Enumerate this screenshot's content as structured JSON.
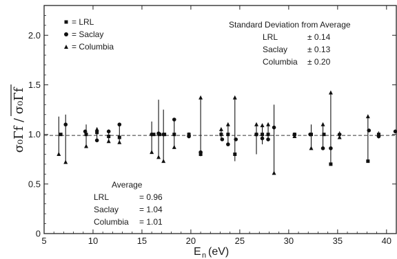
{
  "chart_data": {
    "type": "scatter",
    "xlabel": "E_n (eV)",
    "xlabel_main": "E",
    "xlabel_sub": "n",
    "xlabel_unit": "(eV)",
    "ylabel": "σ₀Γf / σ₀Γf",
    "xlim": [
      5,
      41
    ],
    "ylim": [
      0,
      2.3
    ],
    "x_ticks": [
      5,
      10,
      15,
      20,
      25,
      30,
      35,
      40
    ],
    "y_ticks": [
      0,
      0.5,
      1.0,
      1.5,
      2.0
    ],
    "x_tick_labels": [
      "5",
      "10",
      "15",
      "20",
      "25",
      "30",
      "35",
      "40"
    ],
    "y_tick_labels": [
      "0",
      "0.5",
      "1.0",
      "1.5",
      "2.0"
    ],
    "reference_line": {
      "y": 0.99,
      "style": "dashed"
    },
    "legend": {
      "placement": "top-left",
      "items": [
        {
          "marker": "square",
          "label": "= LRL"
        },
        {
          "marker": "circle",
          "label": "= Saclay"
        },
        {
          "marker": "triangle",
          "label": "= Columbia"
        }
      ]
    },
    "std_box": {
      "title": "Standard Deviation from Average",
      "rows": [
        {
          "name": "LRL",
          "value": "± 0.14"
        },
        {
          "name": "Saclay",
          "value": "± 0.13"
        },
        {
          "name": "Columbia",
          "value": "± 0.20"
        }
      ]
    },
    "avg_box": {
      "title": "Average",
      "rows": [
        {
          "name": "LRL",
          "value": "= 0.96"
        },
        {
          "name": "Saclay",
          "value": "= 1.04"
        },
        {
          "name": "Columbia",
          "value": "= 1.01"
        }
      ]
    },
    "series": [
      {
        "name": "LRL",
        "marker": "square",
        "points": [
          [
            6.7,
            1.0
          ],
          [
            9.3,
            1.0
          ],
          [
            10.4,
            1.02
          ],
          [
            11.6,
            0.98
          ],
          [
            12.7,
            0.97
          ],
          [
            16.2,
            1.0
          ],
          [
            16.8,
            1.0
          ],
          [
            17.3,
            1.0
          ],
          [
            18.3,
            1.0
          ],
          [
            19.8,
            1.0
          ],
          [
            21.0,
            0.8
          ],
          [
            23.1,
            1.0
          ],
          [
            23.8,
            1.0
          ],
          [
            24.5,
            0.8
          ],
          [
            26.7,
            1.0
          ],
          [
            27.3,
            1.0
          ],
          [
            27.9,
            1.0
          ],
          [
            30.6,
            1.0
          ],
          [
            32.3,
            1.0
          ],
          [
            33.6,
            1.0
          ],
          [
            34.3,
            0.7
          ],
          [
            38.1,
            0.73
          ],
          [
            39.2,
            1.0
          ]
        ]
      },
      {
        "name": "Saclay",
        "marker": "circle",
        "points": [
          [
            7.2,
            1.1
          ],
          [
            9.2,
            1.03
          ],
          [
            10.4,
            0.94
          ],
          [
            11.6,
            1.03
          ],
          [
            12.7,
            1.1
          ],
          [
            16.0,
            1.0
          ],
          [
            16.7,
            1.01
          ],
          [
            17.2,
            1.0
          ],
          [
            18.3,
            1.15
          ],
          [
            19.8,
            0.98
          ],
          [
            21.0,
            0.82
          ],
          [
            23.2,
            0.95
          ],
          [
            23.8,
            0.9
          ],
          [
            24.6,
            0.95
          ],
          [
            26.7,
            1.0
          ],
          [
            27.3,
            0.96
          ],
          [
            27.9,
            0.95
          ],
          [
            28.5,
            1.07
          ],
          [
            30.6,
            1.0
          ],
          [
            32.2,
            1.0
          ],
          [
            33.5,
            0.86
          ],
          [
            34.3,
            0.86
          ],
          [
            35.2,
            1.0
          ],
          [
            38.2,
            1.04
          ],
          [
            39.2,
            0.98
          ],
          [
            40.9,
            1.03
          ]
        ]
      },
      {
        "name": "Columbia",
        "marker": "triangle",
        "points": [
          [
            6.5,
            0.8
          ],
          [
            7.2,
            0.72
          ],
          [
            9.3,
            0.88
          ],
          [
            10.4,
            1.05
          ],
          [
            11.6,
            0.93
          ],
          [
            12.7,
            0.92
          ],
          [
            16.0,
            0.82
          ],
          [
            16.7,
            0.77
          ],
          [
            17.2,
            0.73
          ],
          [
            18.3,
            0.87
          ],
          [
            19.8,
            1.0
          ],
          [
            21.0,
            1.37
          ],
          [
            23.1,
            1.05
          ],
          [
            23.8,
            1.1
          ],
          [
            24.5,
            1.37
          ],
          [
            26.7,
            1.1
          ],
          [
            27.3,
            1.09
          ],
          [
            27.9,
            1.1
          ],
          [
            28.5,
            0.61
          ],
          [
            30.6,
            0.98
          ],
          [
            32.3,
            0.86
          ],
          [
            33.5,
            1.1
          ],
          [
            34.3,
            1.42
          ],
          [
            35.2,
            0.97
          ],
          [
            38.1,
            1.18
          ],
          [
            39.2,
            1.0
          ]
        ]
      }
    ],
    "vertical_bars": [
      [
        6.5,
        0.8,
        1.18
      ],
      [
        7.2,
        0.72,
        1.2
      ],
      [
        9.3,
        0.88,
        1.1
      ],
      [
        10.4,
        0.93,
        1.07
      ],
      [
        11.6,
        0.93,
        1.05
      ],
      [
        12.7,
        0.92,
        1.1
      ],
      [
        16.0,
        0.82,
        1.13
      ],
      [
        16.7,
        0.77,
        1.35
      ],
      [
        17.2,
        0.73,
        1.25
      ],
      [
        18.3,
        0.87,
        1.16
      ],
      [
        21.0,
        0.78,
        1.37
      ],
      [
        23.1,
        0.95,
        1.05
      ],
      [
        23.8,
        0.9,
        1.1
      ],
      [
        24.5,
        0.73,
        1.37
      ],
      [
        26.7,
        0.8,
        1.1
      ],
      [
        27.3,
        0.9,
        1.09
      ],
      [
        27.9,
        0.93,
        1.1
      ],
      [
        28.5,
        0.61,
        1.3
      ],
      [
        32.3,
        0.86,
        1.1
      ],
      [
        33.5,
        0.86,
        1.1
      ],
      [
        34.3,
        0.7,
        1.42
      ],
      [
        35.2,
        0.97,
        1.03
      ],
      [
        38.1,
        0.73,
        1.18
      ],
      [
        39.2,
        0.96,
        1.03
      ]
    ],
    "grid": false
  }
}
